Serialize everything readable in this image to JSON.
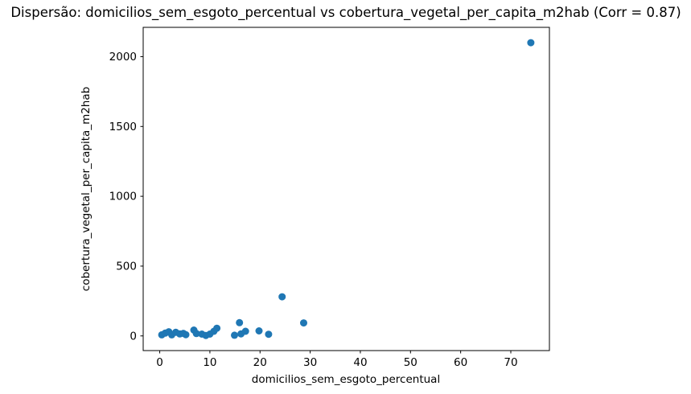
{
  "figure": {
    "background": "#ffffff"
  },
  "chart_data": {
    "type": "scatter",
    "title": "Dispersão: domicilios_sem_esgoto_percentual vs cobertura_vegetal_per_capita_m2hab (Corr = 0.87)",
    "xlabel": "domicilios_sem_esgoto_percentual",
    "ylabel": "cobertura_vegetal_per_capita_m2hab",
    "correlation": 0.87,
    "marker_color": "#1f77b4",
    "axis_color": "#000000",
    "grid": false,
    "legend_position": "none",
    "xlim": [
      -3.3,
      77.7
    ],
    "ylim": [
      -105,
      2210
    ],
    "x_ticks": [
      0,
      10,
      20,
      30,
      40,
      50,
      60,
      70
    ],
    "y_ticks": [
      0,
      500,
      1000,
      1500,
      2000
    ],
    "points": [
      [
        0.4,
        8
      ],
      [
        1.1,
        20
      ],
      [
        1.8,
        30
      ],
      [
        2.4,
        8
      ],
      [
        3.2,
        26
      ],
      [
        4.0,
        14
      ],
      [
        4.7,
        18
      ],
      [
        5.2,
        9
      ],
      [
        6.8,
        42
      ],
      [
        7.3,
        17
      ],
      [
        8.4,
        13
      ],
      [
        9.2,
        3
      ],
      [
        10.0,
        13
      ],
      [
        10.8,
        33
      ],
      [
        11.4,
        55
      ],
      [
        14.9,
        5
      ],
      [
        15.9,
        95
      ],
      [
        16.2,
        15
      ],
      [
        17.1,
        33
      ],
      [
        19.8,
        36
      ],
      [
        21.7,
        12
      ],
      [
        24.4,
        280
      ],
      [
        28.7,
        93
      ],
      [
        74.0,
        2100
      ]
    ]
  }
}
